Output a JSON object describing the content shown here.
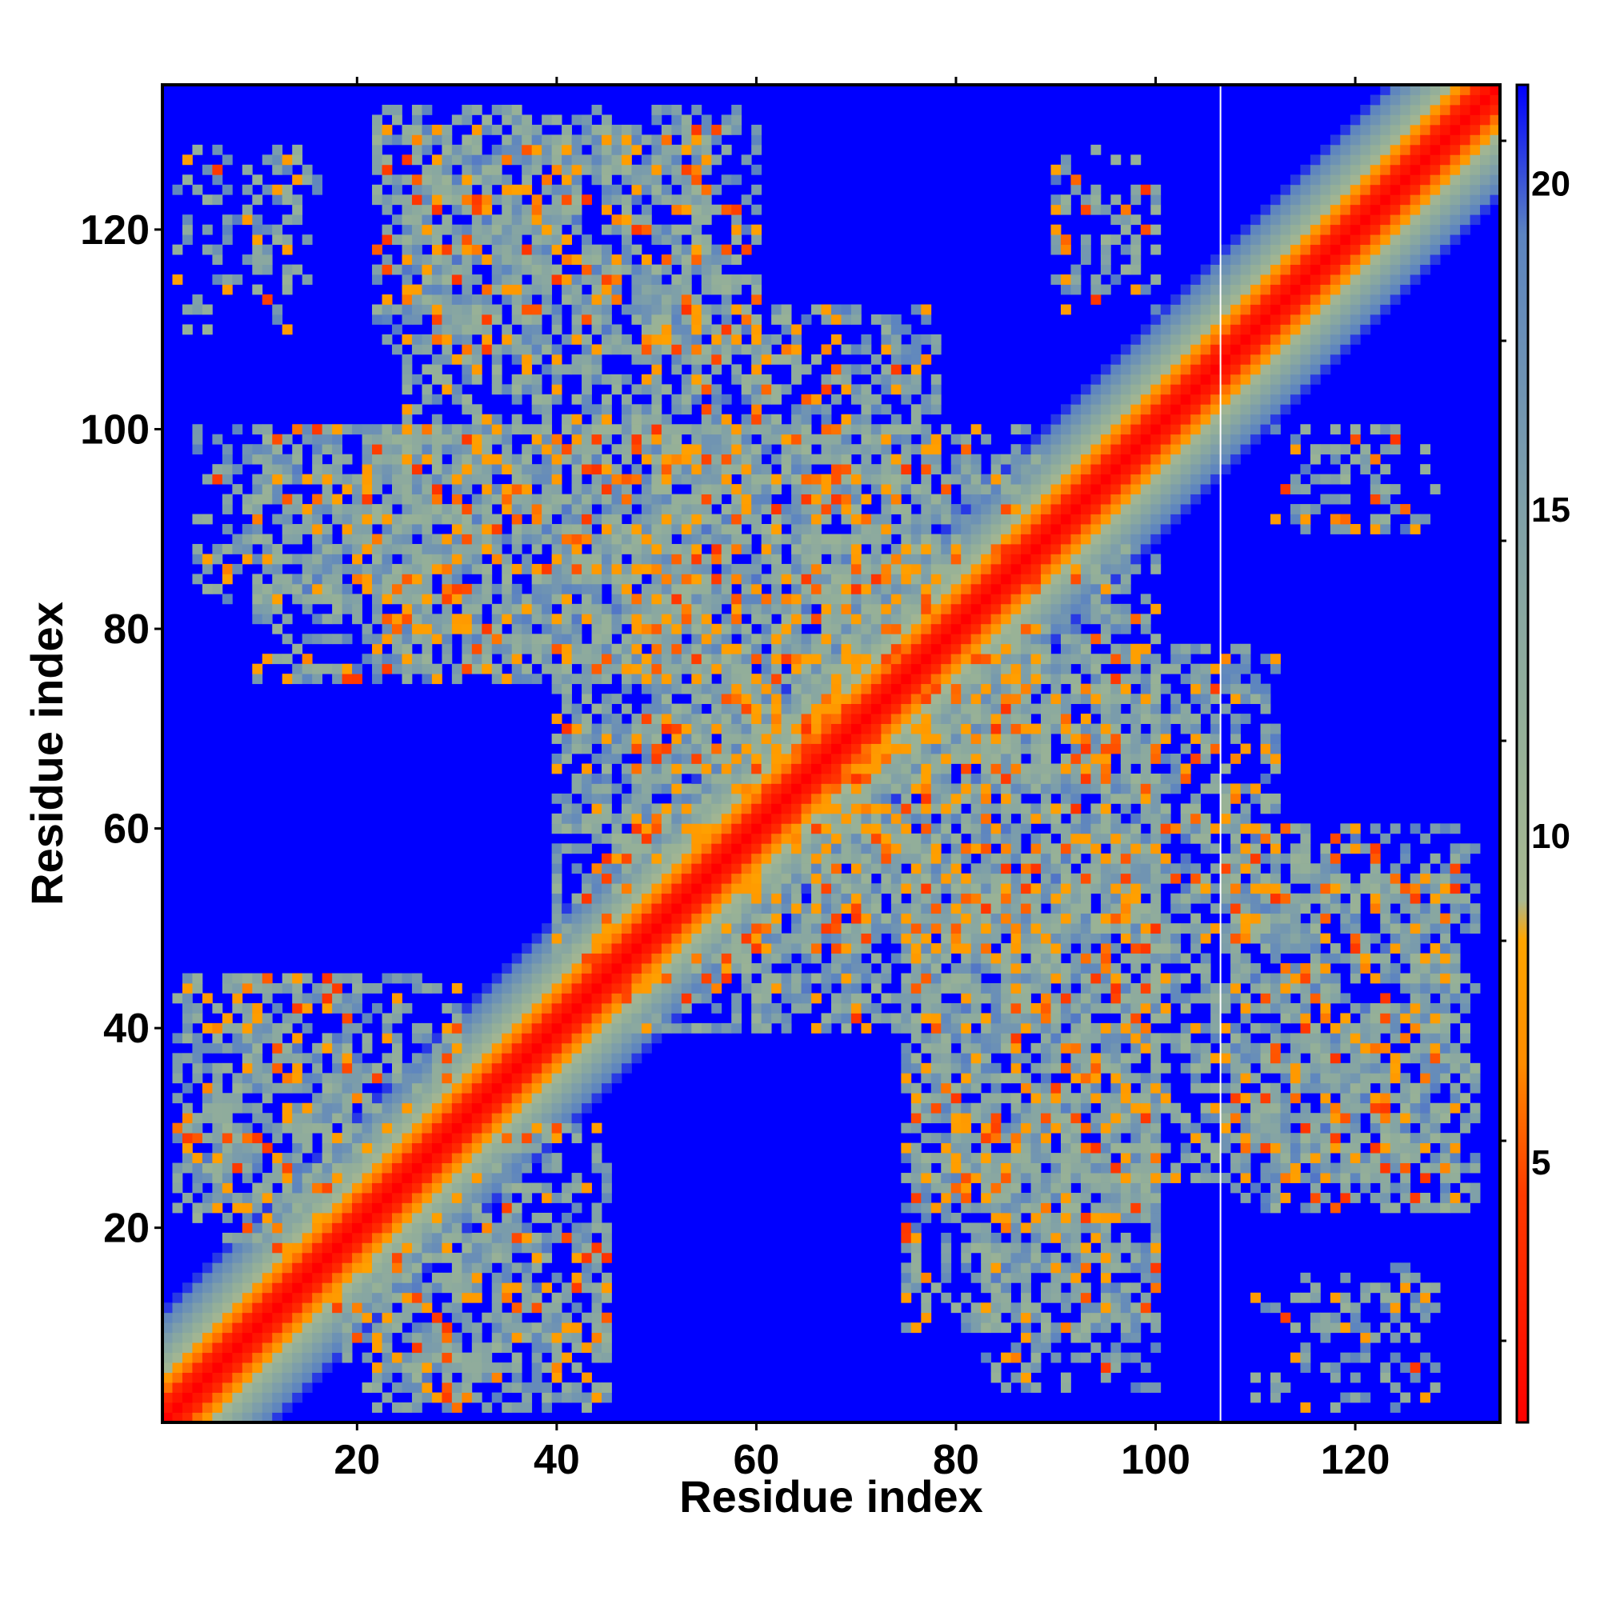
{
  "chart_data": {
    "type": "heatmap",
    "title": "",
    "xlabel": "Residue index",
    "ylabel": "Residue index",
    "n_residues": 134,
    "xlim": [
      1,
      134
    ],
    "ylim": [
      1,
      134
    ],
    "x_ticks": [
      20,
      40,
      60,
      80,
      100,
      120
    ],
    "y_ticks": [
      20,
      40,
      60,
      80,
      100,
      120
    ],
    "colorbar": {
      "ticks": [
        5,
        10,
        15,
        20
      ],
      "range": [
        1,
        21.5
      ],
      "placement": "right"
    },
    "colorscale": [
      {
        "value": 1,
        "color": "#ff0000"
      },
      {
        "value": 4.5,
        "color": "#ff3b00"
      },
      {
        "value": 6.5,
        "color": "#ff8c00"
      },
      {
        "value": 8.4,
        "color": "#ffa500"
      },
      {
        "value": 9.0,
        "color": "#a8b890"
      },
      {
        "value": 11.5,
        "color": "#95b098"
      },
      {
        "value": 15,
        "color": "#7fa0a8"
      },
      {
        "value": 19.2,
        "color": "#5c84c0"
      },
      {
        "value": 21.5,
        "color": "#0000ff"
      }
    ],
    "background_value": 21.5,
    "grid": false,
    "gap_line_x": 107,
    "diagonal_band": {
      "core_width": 2.5,
      "orange_width": 4.5,
      "band_width": 11
    },
    "contact_regions": [
      {
        "name": "A",
        "x": [
          22,
          60
        ],
        "y": [
          108,
          132
        ],
        "density": 0.55
      },
      {
        "name": "B",
        "x": [
          50,
          78
        ],
        "y": [
          64,
          112
        ],
        "density": 0.6
      },
      {
        "name": "C",
        "x": [
          10,
          48
        ],
        "y": [
          75,
          100
        ],
        "density": 0.55
      },
      {
        "name": "D",
        "x": [
          40,
          62
        ],
        "y": [
          45,
          80
        ],
        "density": 0.6
      },
      {
        "name": "E",
        "x": [
          64,
          100
        ],
        "y": [
          48,
          88
        ],
        "density": 0.6
      },
      {
        "name": "F",
        "x": [
          76,
          100
        ],
        "y": [
          22,
          55
        ],
        "density": 0.6
      },
      {
        "name": "G",
        "x": [
          83,
          100
        ],
        "y": [
          4,
          30
        ],
        "density": 0.45
      },
      {
        "name": "H",
        "x": [
          100,
          130
        ],
        "y": [
          25,
          56
        ],
        "density": 0.55
      },
      {
        "name": "I",
        "x": [
          18,
          45
        ],
        "y": [
          4,
          30
        ],
        "density": 0.5
      },
      {
        "name": "J",
        "x": [
          2,
          20
        ],
        "y": [
          22,
          45
        ],
        "density": 0.5
      },
      {
        "name": "K",
        "x": [
          2,
          15
        ],
        "y": [
          114,
          128
        ],
        "density": 0.25
      },
      {
        "name": "L",
        "x": [
          90,
          100
        ],
        "y": [
          114,
          128
        ],
        "density": 0.25
      },
      {
        "name": "M",
        "x": [
          112,
          124
        ],
        "y": [
          90,
          100
        ],
        "density": 0.25
      },
      {
        "name": "N",
        "x": [
          110,
          125
        ],
        "y": [
          3,
          16
        ],
        "density": 0.2
      }
    ]
  }
}
